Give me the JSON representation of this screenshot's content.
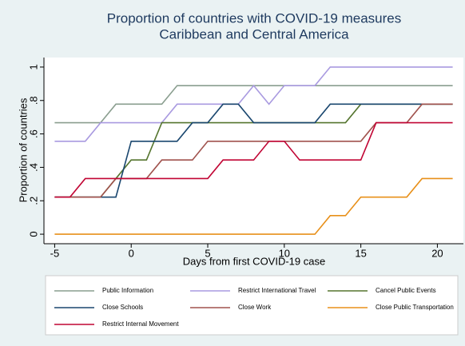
{
  "chart_data": {
    "type": "line",
    "title": "Proportion of countries with COVID-19 measures",
    "subtitle": "Caribbean and Central America",
    "x_label": "Days from first COVID-19 case",
    "y_label": "Proportion of countries",
    "x": [
      -5,
      -4,
      -3,
      -2,
      -1,
      0,
      1,
      2,
      3,
      4,
      5,
      6,
      7,
      8,
      9,
      10,
      11,
      12,
      13,
      14,
      15,
      16,
      17,
      18,
      19,
      20,
      21
    ],
    "xlim": [
      -5.7,
      21.7
    ],
    "xticks": [
      -5,
      0,
      5,
      10,
      15,
      20
    ],
    "ylim": [
      -0.057,
      1.057
    ],
    "yticks": [
      0,
      {
        "value": 0.2,
        "label": ".2"
      },
      {
        "value": 0.4,
        "label": ".4"
      },
      {
        "value": 0.6,
        "label": ".6"
      },
      {
        "value": 0.8,
        "label": ".8"
      },
      1
    ],
    "grid": false,
    "legend": "bottom",
    "series": [
      {
        "name": "Public Information",
        "color": "#8a9e8f",
        "values": [
          0.667,
          0.667,
          0.667,
          0.667,
          0.778,
          0.778,
          0.778,
          0.778,
          0.889,
          0.889,
          0.889,
          0.889,
          0.889,
          0.889,
          0.889,
          0.889,
          0.889,
          0.889,
          0.889,
          0.889,
          0.889,
          0.889,
          0.889,
          0.889,
          0.889,
          0.889,
          0.889
        ]
      },
      {
        "name": "Restrict International Travel",
        "color": "#a99ae0",
        "values": [
          0.556,
          0.556,
          0.556,
          0.667,
          0.667,
          0.667,
          0.667,
          0.667,
          0.778,
          0.778,
          0.778,
          0.778,
          0.778,
          0.889,
          0.778,
          0.889,
          0.889,
          0.889,
          1,
          1,
          1,
          1,
          1,
          1,
          1,
          1,
          1
        ]
      },
      {
        "name": "Cancel Public Events",
        "color": "#55752f",
        "values": [
          0.222,
          0.222,
          0.222,
          0.222,
          0.333,
          0.444,
          0.444,
          0.667,
          0.667,
          0.667,
          0.667,
          0.667,
          0.667,
          0.667,
          0.667,
          0.667,
          0.667,
          0.667,
          0.667,
          0.667,
          0.778,
          0.778,
          0.778,
          0.778,
          0.778,
          0.778,
          0.778
        ]
      },
      {
        "name": "Close Schools",
        "color": "#1a476f",
        "values": [
          0.222,
          0.222,
          0.222,
          0.222,
          0.222,
          0.556,
          0.556,
          0.556,
          0.556,
          0.667,
          0.667,
          0.778,
          0.778,
          0.667,
          0.667,
          0.667,
          0.667,
          0.667,
          0.778,
          0.778,
          0.778,
          0.778,
          0.778,
          0.778,
          0.778,
          0.778,
          0.778
        ]
      },
      {
        "name": "Close Work",
        "color": "#a0524d",
        "values": [
          0.222,
          0.222,
          0.222,
          0.222,
          0.333,
          0.333,
          0.333,
          0.444,
          0.444,
          0.444,
          0.556,
          0.556,
          0.556,
          0.556,
          0.556,
          0.556,
          0.556,
          0.556,
          0.556,
          0.556,
          0.556,
          0.667,
          0.667,
          0.667,
          0.778,
          0.778,
          0.778
        ]
      },
      {
        "name": "Close Public Transportation",
        "color": "#e8901a",
        "values": [
          0,
          0,
          0,
          0,
          0,
          0,
          0,
          0,
          0,
          0,
          0,
          0,
          0,
          0,
          0,
          0,
          0,
          0,
          0.111,
          0.111,
          0.222,
          0.222,
          0.222,
          0.222,
          0.333,
          0.333,
          0.333
        ]
      },
      {
        "name": "Restrict Internal Movement",
        "color": "#c10534",
        "values": [
          0.222,
          0.222,
          0.333,
          0.333,
          0.333,
          0.333,
          0.333,
          0.333,
          0.333,
          0.333,
          0.333,
          0.444,
          0.444,
          0.444,
          0.556,
          0.556,
          0.444,
          0.444,
          0.444,
          0.444,
          0.444,
          0.667,
          0.667,
          0.667,
          0.667,
          0.667,
          0.667
        ]
      }
    ]
  }
}
